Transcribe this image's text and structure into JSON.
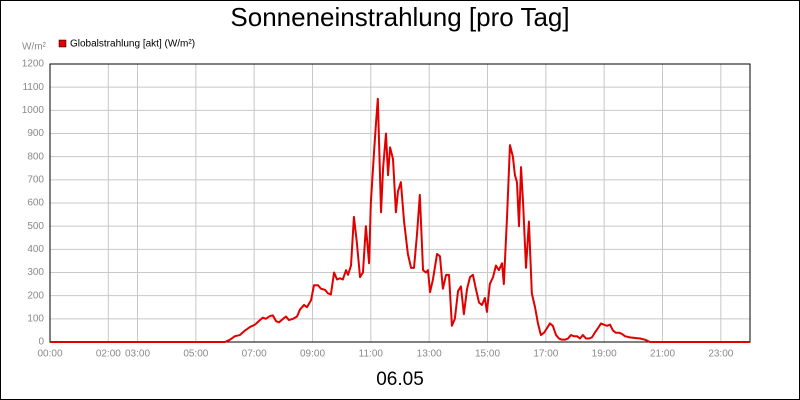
{
  "chart_data": {
    "type": "line",
    "title": "Sonneneinstrahlung [pro Tag]",
    "y_label": "W/m²",
    "x_label": "06.05",
    "x": [
      0,
      6.0,
      6.17,
      6.34,
      6.51,
      6.69,
      6.86,
      7.03,
      7.2,
      7.3,
      7.4,
      7.54,
      7.64,
      7.75,
      7.85,
      7.99,
      8.09,
      8.19,
      8.33,
      8.47,
      8.57,
      8.71,
      8.81,
      8.95,
      9.05,
      9.19,
      9.29,
      9.43,
      9.53,
      9.63,
      9.74,
      9.84,
      9.94,
      10.04,
      10.15,
      10.22,
      10.32,
      10.42,
      10.52,
      10.63,
      10.73,
      10.83,
      10.94,
      11.0,
      11.11,
      11.18,
      11.24,
      11.35,
      11.42,
      11.52,
      11.59,
      11.66,
      11.76,
      11.86,
      11.93,
      12.03,
      12.14,
      12.27,
      12.38,
      12.48,
      12.58,
      12.68,
      12.79,
      12.89,
      12.96,
      13.03,
      13.13,
      13.27,
      13.37,
      13.47,
      13.58,
      13.68,
      13.78,
      13.88,
      13.99,
      14.09,
      14.19,
      14.3,
      14.4,
      14.5,
      14.6,
      14.71,
      14.81,
      14.91,
      14.98,
      15.08,
      15.19,
      15.29,
      15.39,
      15.5,
      15.56,
      15.67,
      15.77,
      15.87,
      15.94,
      16.01,
      16.08,
      16.15,
      16.22,
      16.32,
      16.42,
      16.52,
      16.63,
      16.73,
      16.83,
      16.94,
      17.04,
      17.14,
      17.24,
      17.35,
      17.45,
      17.55,
      17.66,
      17.76,
      17.86,
      17.96,
      18.07,
      18.17,
      18.27,
      18.38,
      18.48,
      18.58,
      18.68,
      18.79,
      18.89,
      18.99,
      19.1,
      19.2,
      19.3,
      19.4,
      19.51,
      19.61,
      19.71,
      19.88,
      20.23,
      20.4,
      20.57,
      24
    ],
    "series": [
      {
        "name": "Globalstrahlung [akt] (W/m²)",
        "color": "#e00000",
        "values": [
          0,
          0,
          10,
          25,
          30,
          50,
          65,
          75,
          95,
          105,
          100,
          112,
          115,
          90,
          85,
          100,
          110,
          95,
          100,
          110,
          140,
          160,
          150,
          180,
          245,
          245,
          230,
          225,
          210,
          205,
          300,
          270,
          275,
          270,
          310,
          290,
          330,
          540,
          430,
          280,
          300,
          500,
          340,
          600,
          820,
          950,
          1050,
          560,
          750,
          900,
          720,
          840,
          790,
          560,
          650,
          690,
          520,
          380,
          320,
          320,
          460,
          635,
          310,
          300,
          310,
          215,
          270,
          380,
          370,
          230,
          290,
          290,
          70,
          100,
          220,
          240,
          120,
          230,
          280,
          290,
          230,
          170,
          160,
          190,
          130,
          250,
          280,
          330,
          310,
          340,
          250,
          540,
          850,
          800,
          720,
          690,
          500,
          755,
          600,
          320,
          520,
          210,
          150,
          80,
          30,
          40,
          60,
          80,
          70,
          30,
          15,
          10,
          10,
          15,
          30,
          25,
          25,
          15,
          30,
          15,
          15,
          20,
          40,
          60,
          80,
          75,
          70,
          75,
          50,
          40,
          40,
          35,
          25,
          20,
          15,
          10,
          0,
          0
        ]
      }
    ],
    "xlim": [
      0,
      24
    ],
    "xticks": [
      {
        "value": 0,
        "label": "00:00"
      },
      {
        "value": 2,
        "label": "02:00"
      },
      {
        "value": 3,
        "label": "03:00"
      },
      {
        "value": 5,
        "label": "05:00"
      },
      {
        "value": 7,
        "label": "07:00"
      },
      {
        "value": 9,
        "label": "09:00"
      },
      {
        "value": 11,
        "label": "11:00"
      },
      {
        "value": 13,
        "label": "13:00"
      },
      {
        "value": 15,
        "label": "15:00"
      },
      {
        "value": 17,
        "label": "17:00"
      },
      {
        "value": 19,
        "label": "19:00"
      },
      {
        "value": 21,
        "label": "21:00"
      },
      {
        "value": 23,
        "label": "23:00"
      }
    ],
    "ylim": [
      0,
      1200
    ],
    "yticks": [
      0,
      100,
      200,
      300,
      400,
      500,
      600,
      700,
      800,
      900,
      1000,
      1100,
      1200
    ],
    "grid": true
  }
}
